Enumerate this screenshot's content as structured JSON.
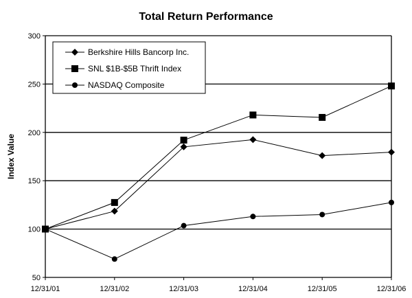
{
  "chart_data": {
    "type": "line",
    "title": "Total Return Performance",
    "xlabel": "",
    "ylabel": "Index Value",
    "ylim": [
      50,
      300
    ],
    "yticks": [
      50,
      100,
      150,
      200,
      250,
      300
    ],
    "grid": true,
    "legend_position": "upper-left inside",
    "categories": [
      "12/31/01",
      "12/31/02",
      "12/31/03",
      "12/31/04",
      "12/31/05",
      "12/31/06"
    ],
    "series": [
      {
        "name": "Berkshire Hills Bancorp Inc.",
        "marker": "diamond",
        "values": [
          100,
          118.5,
          185,
          192.5,
          176,
          179.5
        ]
      },
      {
        "name": "SNL $1B-$5B Thrift Index",
        "marker": "square",
        "values": [
          100,
          127.5,
          192,
          218,
          215.5,
          248
        ]
      },
      {
        "name": "NASDAQ Composite",
        "marker": "circle",
        "values": [
          100,
          69,
          103.5,
          113,
          115,
          127.5
        ]
      }
    ]
  }
}
